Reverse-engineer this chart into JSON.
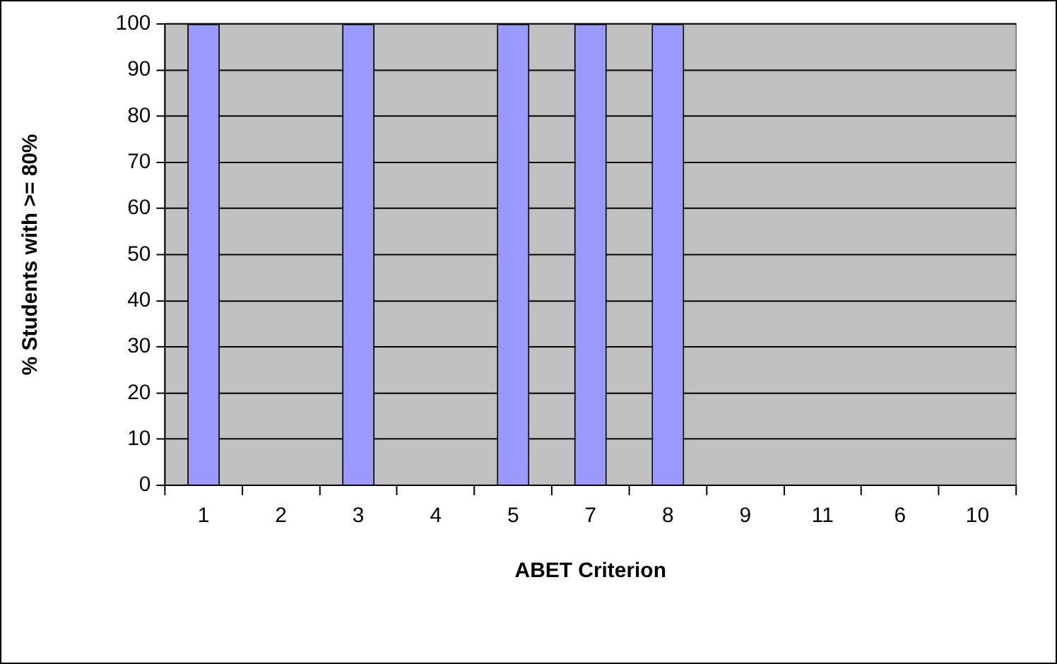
{
  "chart_data": {
    "type": "bar",
    "xlabel": "ABET Criterion",
    "ylabel": "% Students with >= 80%",
    "categories": [
      "1",
      "2",
      "3",
      "4",
      "5",
      "7",
      "8",
      "9",
      "11",
      "6",
      "10"
    ],
    "values": [
      100,
      0,
      100,
      0,
      100,
      100,
      100,
      0,
      0,
      0,
      0
    ],
    "color": "#9999ff",
    "ylim": [
      0,
      100
    ],
    "yticks": [
      0,
      10,
      20,
      30,
      40,
      50,
      60,
      70,
      80,
      90,
      100
    ],
    "grid": "y",
    "legend": false
  }
}
